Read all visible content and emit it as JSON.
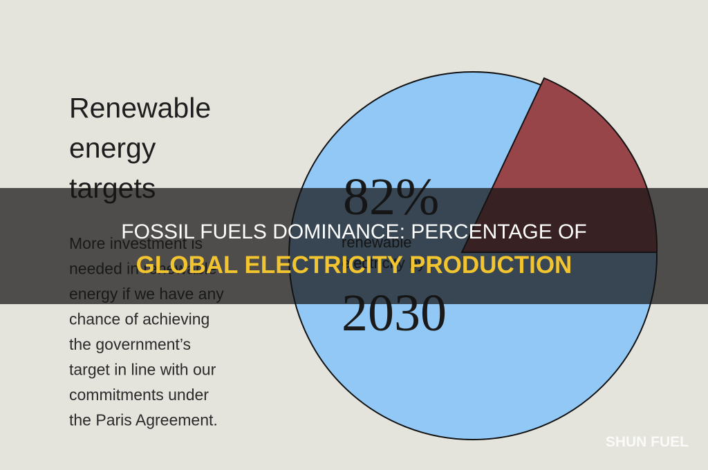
{
  "poster": {
    "heading": [
      "Renewable",
      "energy",
      "targets"
    ],
    "body": [
      "More investment is",
      "needed in renewable",
      "energy if we have any",
      "chance of achieving",
      "the government’s",
      "target in line with our",
      "commitments under",
      "the Paris Agreement."
    ],
    "pie_text": {
      "big": "82%",
      "lines": [
        "renewable",
        "electricity by"
      ],
      "year": "2030"
    }
  },
  "banner": {
    "line1": "FOSSIL FUELS DOMINANCE: PERCENTAGE OF",
    "line2": "GLOBAL ELECTRICITY PRODUCTION"
  },
  "watermark": "SHUN FUEL"
}
